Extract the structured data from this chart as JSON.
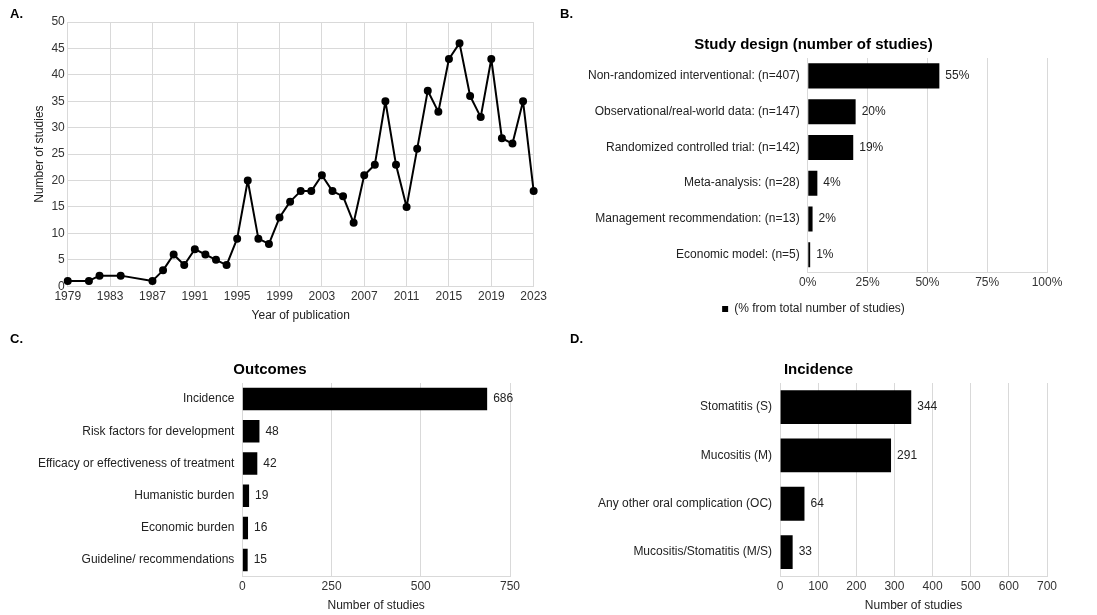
{
  "chart_data": [
    {
      "type": "line",
      "annotations": [
        "A."
      ],
      "xlabel": "Year of publication",
      "ylabel": "Number of studies",
      "x": [
        1979,
        1981,
        1982,
        1984,
        1987,
        1988,
        1989,
        1990,
        1991,
        1992,
        1993,
        1994,
        1995,
        1996,
        1997,
        1998,
        1999,
        2000,
        2001,
        2002,
        2003,
        2004,
        2005,
        2006,
        2007,
        2008,
        2009,
        2010,
        2011,
        2012,
        2013,
        2014,
        2015,
        2016,
        2017,
        2018,
        2019,
        2020,
        2021,
        2022,
        2023
      ],
      "series": [
        {
          "color": "#000000",
          "values": [
            1,
            1,
            2,
            2,
            1,
            3,
            6,
            4,
            7,
            6,
            5,
            4,
            9,
            20,
            9,
            8,
            13,
            16,
            18,
            18,
            21,
            18,
            17,
            12,
            21,
            23,
            35,
            23,
            15,
            26,
            37,
            33,
            43,
            46,
            36,
            32,
            43,
            28,
            27,
            35,
            18
          ]
        }
      ],
      "xlim": [
        1979,
        2023
      ],
      "xticks": [
        1979,
        1983,
        1987,
        1991,
        1995,
        1999,
        2003,
        2007,
        2011,
        2015,
        2019,
        2023
      ],
      "ylim": [
        0,
        50
      ],
      "yticks": [
        0,
        5,
        10,
        15,
        20,
        25,
        30,
        35,
        40,
        45,
        50
      ],
      "grid": true,
      "marker": "circle",
      "line_style": "solid",
      "legend": false
    },
    {
      "type": "bar",
      "orientation": "horizontal",
      "annotations": [
        "B."
      ],
      "title": "Study design (number of studies)",
      "categories": [
        "Non-randomized interventional: (n=407)",
        "Observational/real-world data: (n=147)",
        "Randomized controlled trial: (n=142)",
        "Meta-analysis: (n=28)",
        "Management recommendation: (n=13)",
        "Economic model: (n=5)"
      ],
      "series": [
        {
          "name": "(% from total number of studies)",
          "color": "#000000",
          "values": [
            55,
            20,
            19,
            4,
            2,
            1
          ],
          "value_labels": [
            "55%",
            "20%",
            "19%",
            "4%",
            "2%",
            "1%"
          ]
        }
      ],
      "xlim": [
        0,
        100
      ],
      "xticks": [
        {
          "value": 0,
          "label": "0%"
        },
        {
          "value": 25,
          "label": "25%"
        },
        {
          "value": 50,
          "label": "50%"
        },
        {
          "value": 75,
          "label": "75%"
        },
        {
          "value": 100,
          "label": "100%"
        }
      ],
      "grid": "x",
      "legend": "bottom"
    },
    {
      "type": "bar",
      "orientation": "horizontal",
      "annotations": [
        "C."
      ],
      "title": "Outcomes",
      "xlabel": "Number of studies",
      "categories": [
        "Incidence",
        "Risk factors for development",
        "Efficacy or effectiveness of treatment",
        "Humanistic burden",
        "Economic burden",
        "Guideline/ recommendations"
      ],
      "series": [
        {
          "color": "#000000",
          "values": [
            686,
            48,
            42,
            19,
            16,
            15
          ]
        }
      ],
      "xlim": [
        0,
        750
      ],
      "xticks": [
        0,
        250,
        500,
        750
      ],
      "grid": "x",
      "data_labels": true,
      "legend": false
    },
    {
      "type": "bar",
      "orientation": "horizontal",
      "annotations": [
        "D."
      ],
      "title": "Incidence",
      "xlabel": "Number of studies",
      "categories": [
        "Stomatitis (S)",
        "Mucositis (M)",
        "Any other oral complication (OC)",
        "Mucositis/Stomatitis (M/S)"
      ],
      "series": [
        {
          "color": "#000000",
          "values": [
            344,
            291,
            64,
            33
          ]
        }
      ],
      "xlim": [
        0,
        700
      ],
      "xticks": [
        0,
        100,
        200,
        300,
        400,
        500,
        600,
        700
      ],
      "grid": "x",
      "data_labels": true,
      "legend": false
    }
  ]
}
